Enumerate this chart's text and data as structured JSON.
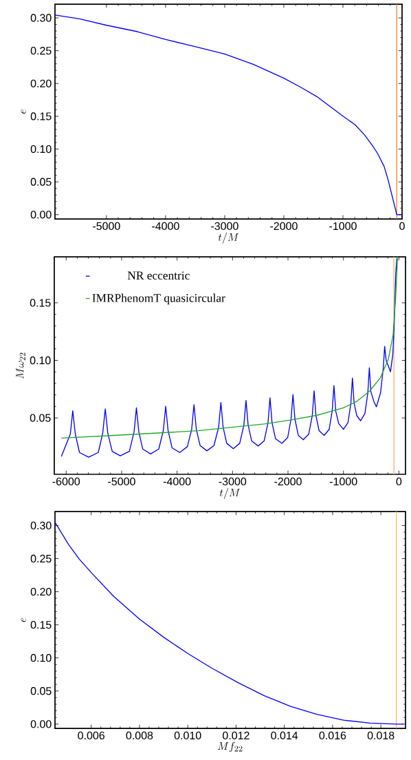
{
  "chart_data": [
    {
      "type": "line",
      "xlabel": "t/M",
      "ylabel": "e",
      "xlim": [
        -5870,
        0
      ],
      "ylim": [
        -0.0065,
        0.321
      ],
      "xticks": [
        -5000,
        -4000,
        -3000,
        -2000,
        -1000,
        0
      ],
      "yticks": [
        {
          "value": 0,
          "label": "0.00"
        },
        {
          "value": 0.05,
          "label": "0.05"
        },
        {
          "value": 0.1,
          "label": "0.10"
        },
        {
          "value": 0.15,
          "label": "0.15"
        },
        {
          "value": 0.2,
          "label": "0.20"
        },
        {
          "value": 0.25,
          "label": "0.25"
        },
        {
          "value": 0.3,
          "label": "0.30"
        }
      ],
      "grid": false,
      "ref_lines": [
        {
          "axis": "x",
          "value": -90,
          "color": "#e8873a"
        }
      ],
      "series": [
        {
          "color": "#0000ff",
          "x": [
            -5865,
            -5455,
            -5008,
            -4474,
            -3996,
            -3492,
            -3002,
            -2511,
            -1998,
            -1708,
            -1441,
            -995,
            -794,
            -638,
            -504,
            -415,
            -303,
            -236,
            -147,
            -89,
            0
          ],
          "values": [
            0.3044,
            0.2985,
            0.289,
            0.279,
            0.267,
            0.256,
            0.245,
            0.229,
            0.208,
            0.194,
            0.18,
            0.15,
            0.137,
            0.122,
            0.1056,
            0.0935,
            0.0734,
            0.053,
            0.021,
            0,
            0
          ]
        }
      ]
    },
    {
      "type": "line",
      "xlabel": "t/M",
      "ylabel": "M\\omega_{22}",
      "xlim": [
        -6214,
        119
      ],
      "ylim": [
        0.001,
        0.19
      ],
      "xticks": [
        -6000,
        -5000,
        -4000,
        -3000,
        -2000,
        -1000,
        0
      ],
      "yticks": [
        {
          "value": 0.05,
          "label": "0.05"
        },
        {
          "value": 0.1,
          "label": "0.10"
        },
        {
          "value": 0.15,
          "label": "0.15"
        }
      ],
      "grid": false,
      "legend": "top left",
      "ref_lines": [
        {
          "axis": "x",
          "value": -90,
          "color": "#f7b26e"
        }
      ],
      "series": [
        {
          "name": "NR eccentric",
          "color": "#0000ff",
          "x": [
            -6086,
            -5925,
            -5881,
            -5835,
            -5760,
            -5595,
            -5420,
            -5340,
            -5295,
            -5250,
            -5170,
            -5024,
            -4860,
            -4775,
            -4733,
            -4690,
            -4620,
            -4476,
            -4330,
            -4248,
            -4205,
            -4162,
            -4090,
            -3952,
            -3815,
            -3737,
            -3695,
            -3653,
            -3585,
            -3462,
            -3335,
            -3250,
            -3210,
            -3170,
            -3105,
            -2986,
            -2870,
            -2795,
            -2757,
            -2719,
            -2655,
            -2538,
            -2430,
            -2360,
            -2324,
            -2288,
            -2225,
            -2110,
            -2005,
            -1945,
            -1910,
            -1875,
            -1815,
            -1724,
            -1625,
            -1562,
            -1529,
            -1496,
            -1440,
            -1348,
            -1258,
            -1203,
            -1171,
            -1139,
            -1085,
            -1000,
            -918,
            -868,
            -838,
            -808,
            -760,
            -690,
            -612,
            -560,
            -533,
            -506,
            -450,
            -405,
            -330,
            -280,
            -257,
            -230,
            -152,
            -110,
            -86,
            -57,
            -38
          ],
          "values": [
            0.0166,
            0.036,
            0.0562,
            0.036,
            0.02,
            0.0159,
            0.02,
            0.037,
            0.0578,
            0.037,
            0.021,
            0.0171,
            0.021,
            0.038,
            0.0588,
            0.038,
            0.023,
            0.0187,
            0.023,
            0.039,
            0.0601,
            0.039,
            0.024,
            0.02,
            0.025,
            0.04,
            0.0615,
            0.04,
            0.026,
            0.0214,
            0.026,
            0.042,
            0.0634,
            0.042,
            0.028,
            0.0233,
            0.028,
            0.044,
            0.0652,
            0.044,
            0.03,
            0.0256,
            0.03,
            0.046,
            0.0675,
            0.046,
            0.032,
            0.0279,
            0.033,
            0.049,
            0.0703,
            0.049,
            0.035,
            0.0311,
            0.036,
            0.052,
            0.0735,
            0.052,
            0.039,
            0.0348,
            0.04,
            0.056,
            0.0781,
            0.056,
            0.045,
            0.0401,
            0.046,
            0.062,
            0.0846,
            0.063,
            0.052,
            0.0475,
            0.054,
            0.072,
            0.0936,
            0.073,
            0.064,
            0.0597,
            0.072,
            0.094,
            0.1122,
            0.1,
            0.0901,
            0.105,
            0.1288,
            0.175,
            0.1887
          ]
        },
        {
          "name": "IMRPhenomT quasicircular",
          "color": "#22a822",
          "x": [
            -6086,
            -5133,
            -3619,
            -2429,
            -1952,
            -1476,
            -1000,
            -762,
            -524,
            -333,
            -190,
            -105,
            -57,
            -24
          ],
          "values": [
            0.0325,
            0.0348,
            0.0389,
            0.0447,
            0.0482,
            0.0523,
            0.0588,
            0.0643,
            0.0735,
            0.085,
            0.101,
            0.122,
            0.156,
            0.19
          ]
        }
      ]
    },
    {
      "type": "line",
      "xlabel": "M f_{22}",
      "ylabel": "e",
      "xlim": [
        0.0045,
        0.01902
      ],
      "ylim": [
        -0.0064,
        0.3212
      ],
      "xticks": [
        {
          "value": 0.006,
          "label": "0.006"
        },
        {
          "value": 0.008,
          "label": "0.008"
        },
        {
          "value": 0.01,
          "label": "0.010"
        },
        {
          "value": 0.012,
          "label": "0.012"
        },
        {
          "value": 0.014,
          "label": "0.014"
        },
        {
          "value": 0.016,
          "label": "0.016"
        },
        {
          "value": 0.018,
          "label": "0.018"
        }
      ],
      "yticks": [
        {
          "value": 0,
          "label": "0.00"
        },
        {
          "value": 0.05,
          "label": "0.05"
        },
        {
          "value": 0.1,
          "label": "0.10"
        },
        {
          "value": 0.15,
          "label": "0.15"
        },
        {
          "value": 0.2,
          "label": "0.20"
        },
        {
          "value": 0.25,
          "label": "0.25"
        },
        {
          "value": 0.3,
          "label": "0.30"
        }
      ],
      "grid": false,
      "ref_lines": [
        {
          "axis": "x",
          "value": 0.01864,
          "color": "#f7b26e"
        }
      ],
      "series": [
        {
          "color": "#0000ff",
          "x": [
            0.0045,
            0.00507,
            0.00551,
            0.006,
            0.00693,
            0.00799,
            0.00901,
            0.00999,
            0.01098,
            0.01207,
            0.01317,
            0.01426,
            0.01535,
            0.01645,
            0.01755,
            0.01864,
            0.01894
          ],
          "values": [
            0.305,
            0.271,
            0.249,
            0.229,
            0.193,
            0.159,
            0.131,
            0.107,
            0.0849,
            0.0629,
            0.0429,
            0.0268,
            0.0148,
            0.006,
            0.0016,
            0,
            0
          ]
        }
      ]
    }
  ]
}
